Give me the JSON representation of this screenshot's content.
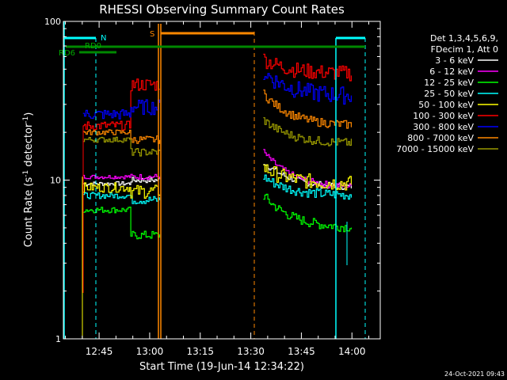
{
  "chart_data": {
    "type": "line",
    "title": "RHESSI Observing Summary Count Rates",
    "xlabel": "Start Time (19-Jun-14 12:34:22)",
    "ylabel_main": "Count Rate (s",
    "ylabel_sup1": "-1",
    "ylabel_mid": " detector",
    "ylabel_sup2": "-1",
    "ylabel_end": ")",
    "yscale": "log",
    "ylim": [
      1,
      100
    ],
    "xlim_minutes": [
      0,
      94
    ],
    "x_ticks": [
      {
        "label": "12:45",
        "t": 10.6
      },
      {
        "label": "13:00",
        "t": 25.6
      },
      {
        "label": "13:15",
        "t": 40.6
      },
      {
        "label": "13:30",
        "t": 55.6
      },
      {
        "label": "13:45",
        "t": 70.6
      },
      {
        "label": "14:00",
        "t": 85.6
      }
    ],
    "y_ticks": [
      {
        "label": "1",
        "v": 1
      },
      {
        "label": "10",
        "v": 10
      },
      {
        "label": "100",
        "v": 100
      }
    ],
    "legend_header": [
      "Det 1,3,4,5,6,9,",
      "FDecim 1, Att 0"
    ],
    "legend_placement": "top-right",
    "series": [
      {
        "name": "3 - 6 keV",
        "color": "#ffffff",
        "levels": [
          9.5,
          10.0,
          10.0,
          10.0,
          13.0,
          9.0
        ]
      },
      {
        "name": "6 - 12 keV",
        "color": "#ff00ff",
        "levels": [
          10.5,
          10.5,
          9.5,
          9.5,
          15.0,
          9.0
        ]
      },
      {
        "name": "12 - 25 keV",
        "color": "#00ff00",
        "levels": [
          6.5,
          4.5,
          5.0,
          5.0,
          8.0,
          5.0
        ]
      },
      {
        "name": "25 - 50 keV",
        "color": "#00ffff",
        "levels": [
          8.0,
          7.5,
          7.5,
          7.5,
          10.5,
          8.0
        ]
      },
      {
        "name": "50 - 100 keV",
        "color": "#ffff00",
        "levels": [
          9.0,
          8.5,
          8.5,
          8.5,
          12.0,
          9.5
        ]
      },
      {
        "name": "100 - 300 keV",
        "color": "#ff0000",
        "levels": [
          22.0,
          40.0,
          40.0,
          40.0,
          58.0,
          47.0
        ]
      },
      {
        "name": "300 - 800 keV",
        "color": "#0000ff",
        "levels": [
          26.0,
          29.0,
          29.0,
          29.0,
          48.0,
          34.0
        ]
      },
      {
        "name": "800 - 7000 keV",
        "color": "#ff8800",
        "levels": [
          20.0,
          18.0,
          18.0,
          18.0,
          35.0,
          22.0
        ]
      },
      {
        "name": "7000 - 15000 keV",
        "color": "#999900",
        "levels": [
          18.0,
          15.0,
          15.0,
          15.0,
          24.0,
          17.0
        ]
      }
    ],
    "flag_labels": {
      "night": "N",
      "saa": "S",
      "rd0": "RD0",
      "rd6": "RD6"
    },
    "timestamp": "24-Oct-2021 09:43"
  }
}
